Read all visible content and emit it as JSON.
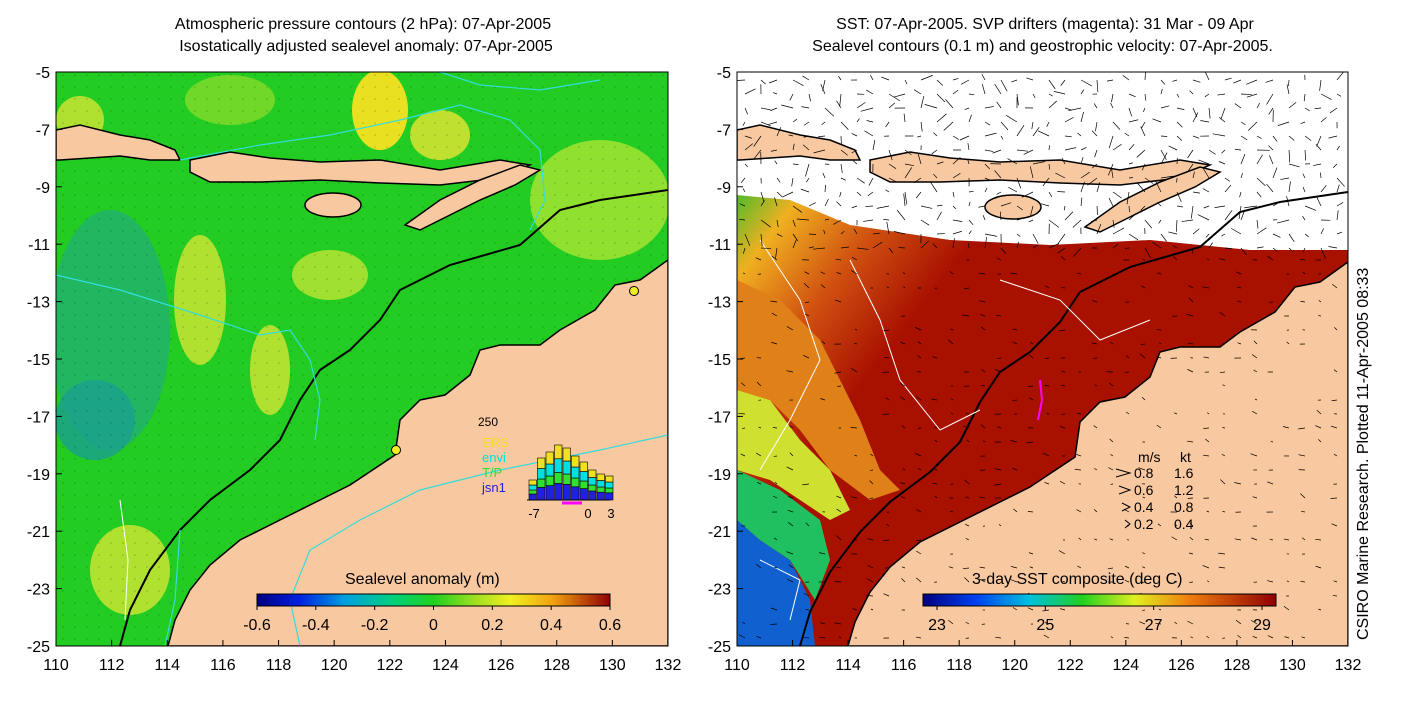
{
  "left_panel": {
    "title_line1": "Atmospheric pressure contours (2 hPa): 07-Apr-2005",
    "title_line2": "Isostatically adjusted sealevel anomaly: 07-Apr-2005",
    "y_ticks": [
      "-5",
      "-7",
      "-9",
      "-11",
      "-13",
      "-15",
      "-17",
      "-19",
      "-21",
      "-23",
      "-25"
    ],
    "x_ticks": [
      "110",
      "112",
      "114",
      "116",
      "118",
      "120",
      "122",
      "124",
      "126",
      "128",
      "130",
      "132"
    ],
    "colorbar_label": "Sealevel anomaly (m)",
    "colorbar_ticks": [
      "-0.6",
      "-0.4",
      "-0.2",
      "0",
      "0.2",
      "0.4",
      "0.6"
    ],
    "colors": {
      "land": "#f8c8a0",
      "sea_base": "#22cc22",
      "coast": "#000000",
      "contour": "#33dddd"
    },
    "inset": {
      "top_label": "250",
      "legend": [
        {
          "name": "ERS",
          "color": "#f0e020"
        },
        {
          "name": "envi",
          "color": "#00e0e0"
        },
        {
          "name": "T/P",
          "color": "#30e030"
        },
        {
          "name": "jsn1",
          "color": "#2020e0"
        }
      ],
      "x_labels": [
        "-7",
        "0",
        "3"
      ]
    }
  },
  "right_panel": {
    "title_line1": "SST: 07-Apr-2005. SVP drifters (magenta): 31 Mar - 09 Apr",
    "title_line2": "Sealevel contours (0.1 m) and geostrophic velocity: 07-Apr-2005.",
    "y_ticks": [
      "-5",
      "-7",
      "-9",
      "-11",
      "-13",
      "-15",
      "-17",
      "-19",
      "-21",
      "-23",
      "-25"
    ],
    "x_ticks": [
      "110",
      "112",
      "114",
      "116",
      "118",
      "120",
      "122",
      "124",
      "126",
      "128",
      "130",
      "132"
    ],
    "colorbar_label": "3-day SST composite (deg C)",
    "colorbar_ticks": [
      "23",
      "25",
      "27",
      "29"
    ],
    "colors": {
      "land": "#f8c8a0",
      "sst_hot": "#aa1100"
    },
    "speed_legend": {
      "header_ms": "m/s",
      "header_kt": "kt",
      "rows": [
        {
          "ms": "0.8",
          "kt": "1.6"
        },
        {
          "ms": "0.6",
          "kt": "1.2"
        },
        {
          "ms": "0.4",
          "kt": "0.8"
        },
        {
          "ms": "0.2",
          "kt": "0.4"
        }
      ]
    }
  },
  "side_note": "CSIRO Marine Research. Plotted 11-Apr-2005 08:33"
}
